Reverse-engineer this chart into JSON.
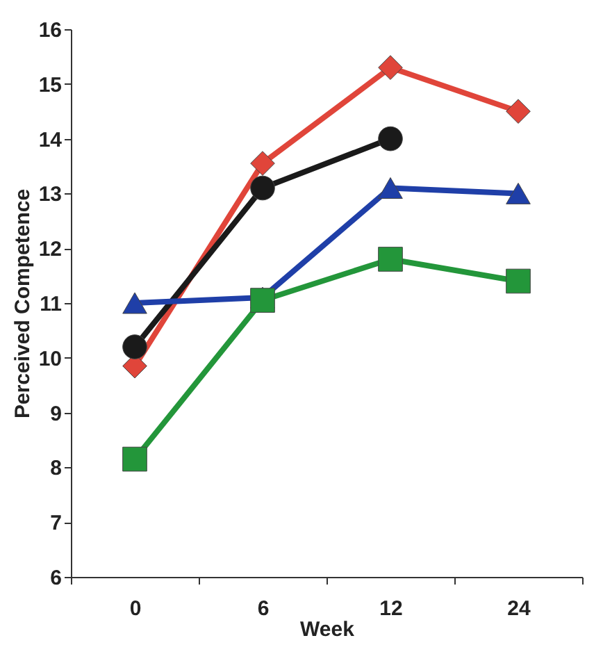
{
  "chart_data": {
    "type": "line",
    "xlabel": "Week",
    "ylabel": "Perceived Competence",
    "categories": [
      "0",
      "6",
      "12",
      "24"
    ],
    "series": [
      {
        "color": "#e0453a",
        "marker": "diamond",
        "values": [
          9.85,
          13.55,
          15.3,
          14.5
        ]
      },
      {
        "color": "#1a1a1a",
        "marker": "circle",
        "values": [
          10.2,
          13.1,
          14.0,
          null
        ]
      },
      {
        "color": "#1f3fa8",
        "marker": "triangle",
        "values": [
          11.0,
          11.1,
          13.1,
          13.0
        ]
      },
      {
        "color": "#23963a",
        "marker": "square",
        "values": [
          8.15,
          11.05,
          11.8,
          11.4
        ]
      }
    ],
    "ylim": [
      6,
      16
    ],
    "yticks": [
      6,
      7,
      8,
      9,
      10,
      11,
      12,
      13,
      14,
      15,
      16
    ],
    "grid": false,
    "legend": false,
    "line_style": "solid"
  }
}
